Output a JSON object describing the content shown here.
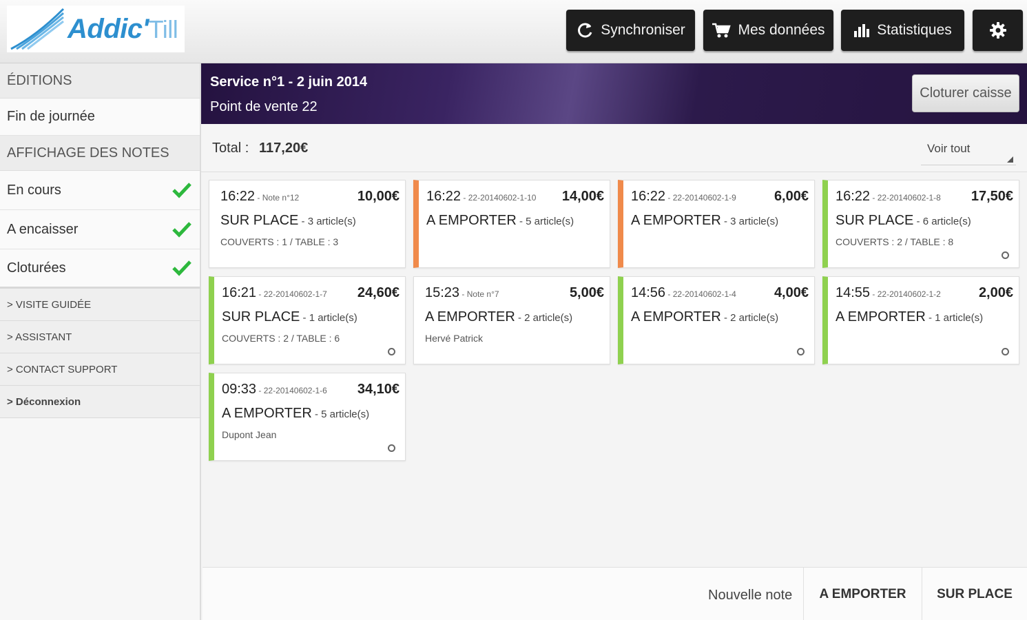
{
  "header": {
    "logo_main": "Addic'",
    "logo_sub": "Till",
    "buttons": {
      "sync": "Synchroniser",
      "data": "Mes données",
      "stats": "Statistiques"
    }
  },
  "sidebar": {
    "section_editions": "ÉDITIONS",
    "end_of_day": "Fin de journée",
    "section_notes": "AFFICHAGE DES NOTES",
    "filters": [
      {
        "label": "En cours"
      },
      {
        "label": "A encaisser"
      },
      {
        "label": "Cloturées"
      }
    ],
    "links": {
      "tour": "> VISITE GUIDÉE",
      "assistant": "> ASSISTANT",
      "support": "> CONTACT SUPPORT",
      "logout": "> Déconnexion"
    },
    "check_color": "#2db83d"
  },
  "service": {
    "title": "Service n°1 - 2 juin 2014",
    "pos": "Point de vente 22",
    "close_button": "Cloturer caisse"
  },
  "summary": {
    "total_label": "Total :",
    "total_value": "117,20€",
    "filter_select": "Voir tout"
  },
  "notes": [
    {
      "time": "16:22",
      "ref": " - Note n°12",
      "amount": "10,00€",
      "type": "SUR PLACE",
      "count": " - 3 article(s)",
      "extra": "COUVERTS : 1 / TABLE : 3"
    },
    {
      "time": "16:22",
      "ref": " - 22-20140602-1-10",
      "amount": "14,00€",
      "type": "A EMPORTER",
      "count": " - 5 article(s)",
      "extra": ""
    },
    {
      "time": "16:22",
      "ref": " - 22-20140602-1-9",
      "amount": "6,00€",
      "type": "A EMPORTER",
      "count": " - 3 article(s)",
      "extra": ""
    },
    {
      "time": "16:22",
      "ref": " - 22-20140602-1-8",
      "amount": "17,50€",
      "type": "SUR PLACE",
      "count": " - 6 article(s)",
      "extra": "COUVERTS : 2 / TABLE : 8"
    },
    {
      "time": "16:21",
      "ref": " - 22-20140602-1-7",
      "amount": "24,60€",
      "type": "SUR PLACE",
      "count": " - 1 article(s)",
      "extra": "COUVERTS : 2 / TABLE : 6"
    },
    {
      "time": "15:23",
      "ref": " - Note n°7",
      "amount": "5,00€",
      "type": "A EMPORTER",
      "count": " - 2 article(s)",
      "extra": "Hervé Patrick"
    },
    {
      "time": "14:56",
      "ref": " - 22-20140602-1-4",
      "amount": "4,00€",
      "type": "A EMPORTER",
      "count": " - 2 article(s)",
      "extra": ""
    },
    {
      "time": "14:55",
      "ref": " - 22-20140602-1-2",
      "amount": "2,00€",
      "type": "A EMPORTER",
      "count": " - 1 article(s)",
      "extra": ""
    },
    {
      "time": "09:33",
      "ref": " - 22-20140602-1-6",
      "amount": "34,10€",
      "type": "A EMPORTER",
      "count": " - 5 article(s)",
      "extra": "Dupont Jean"
    }
  ],
  "footer": {
    "new_note": "Nouvelle note",
    "takeaway": "A EMPORTER",
    "onsite": "SUR PLACE"
  }
}
